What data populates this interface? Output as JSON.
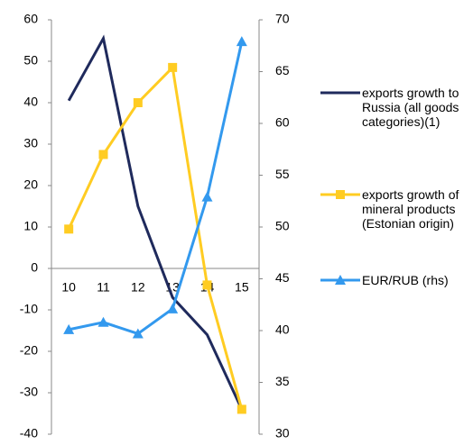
{
  "chart_data": {
    "type": "line",
    "categories": [
      "10",
      "11",
      "12",
      "13",
      "14",
      "15"
    ],
    "series": [
      {
        "name": "exports growth to Russia (all goods categories)(1)",
        "color": "#1f2a5c",
        "values": [
          40.5,
          55.5,
          15,
          -7,
          -16,
          -34
        ]
      },
      {
        "name": "exports growth of mineral products (Estonian origin)",
        "color": "#ffcc22",
        "marker": "square",
        "values": [
          9.5,
          27.5,
          40,
          48.5,
          -4,
          -34
        ]
      },
      {
        "name": "EUR/RUB (rhs)",
        "color": "#3399ee",
        "marker": "triangle",
        "axis": "y2",
        "values": [
          40.1,
          40.8,
          39.7,
          42.1,
          52.9,
          67.9
        ]
      }
    ],
    "ylim": [
      -40,
      60
    ],
    "yticks": [
      -40,
      -30,
      -20,
      -10,
      0,
      10,
      20,
      30,
      40,
      50,
      60
    ],
    "y2lim": [
      30,
      70
    ],
    "y2ticks": [
      30,
      35,
      40,
      45,
      50,
      55,
      60,
      65,
      70
    ],
    "legend": "right"
  }
}
